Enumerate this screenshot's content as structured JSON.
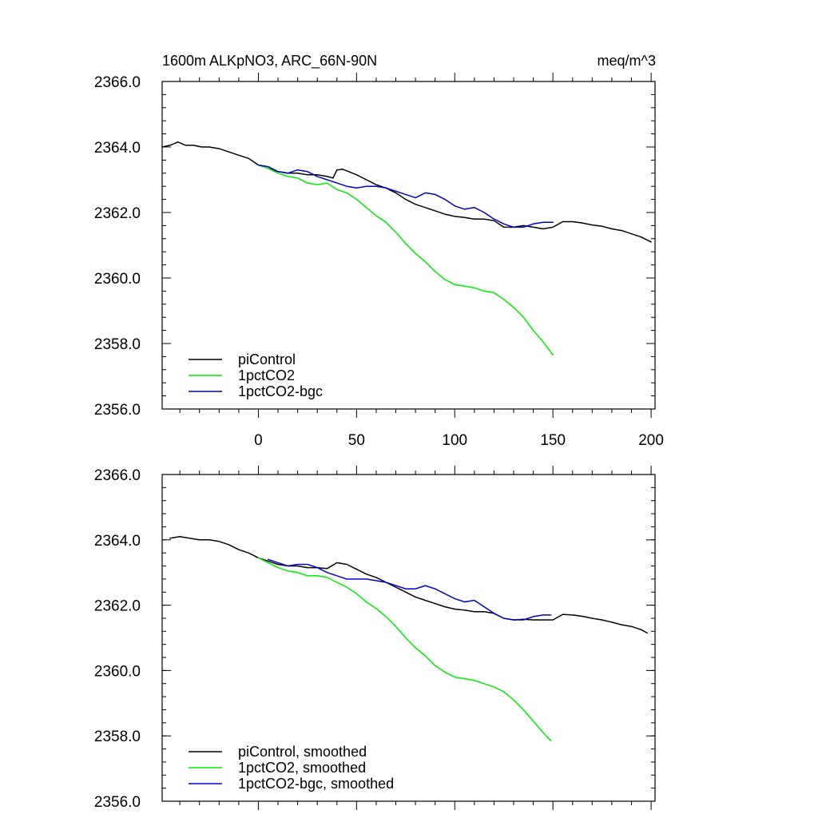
{
  "figure": {
    "title_left": "1600m ALKpNO3, ARC_66N-90N",
    "title_right": "meq/m^3"
  },
  "colors": {
    "piControl": "#000000",
    "1pctCO2": "#00ee00",
    "1pctCO2-bgc": "#0000cc"
  },
  "chart_data": [
    {
      "type": "line",
      "title": "1600m ALKpNO3, ARC_66N-90N",
      "units": "meq/m^3",
      "xlim": [
        -49,
        202
      ],
      "ylim": [
        2356.0,
        2366.0
      ],
      "x_ticks": [
        0,
        50,
        100,
        150,
        200
      ],
      "x_tick_labels": [
        "0",
        "50",
        "100",
        "150",
        "200"
      ],
      "y_ticks": [
        2356.0,
        2358.0,
        2360.0,
        2362.0,
        2364.0,
        2366.0
      ],
      "y_tick_labels": [
        "2356.0",
        "2358.0",
        "2360.0",
        "2362.0",
        "2364.0",
        "2366.0"
      ],
      "legend_position": "bottom-left",
      "series": [
        {
          "name": "piControl",
          "color": "#000000",
          "x": [
            -49,
            -45,
            -41,
            -37,
            -33,
            -29,
            -25,
            -20,
            -15,
            -10,
            -5,
            0,
            5,
            10,
            15,
            20,
            25,
            30,
            35,
            38,
            40,
            43,
            46,
            50,
            55,
            60,
            65,
            70,
            75,
            80,
            85,
            90,
            95,
            100,
            105,
            110,
            115,
            120,
            125,
            130,
            135,
            140,
            145,
            150,
            155,
            160,
            165,
            170,
            175,
            180,
            185,
            190,
            195,
            200
          ],
          "y": [
            2364.0,
            2364.05,
            2364.15,
            2364.05,
            2364.05,
            2364.0,
            2364.0,
            2363.95,
            2363.85,
            2363.75,
            2363.65,
            2363.45,
            2363.35,
            2363.25,
            2363.2,
            2363.2,
            2363.15,
            2363.15,
            2363.1,
            2363.05,
            2363.3,
            2363.32,
            2363.25,
            2363.15,
            2363.0,
            2362.85,
            2362.75,
            2362.6,
            2362.4,
            2362.25,
            2362.15,
            2362.05,
            2361.95,
            2361.88,
            2361.85,
            2361.8,
            2361.8,
            2361.75,
            2361.55,
            2361.55,
            2361.6,
            2361.55,
            2361.5,
            2361.55,
            2361.72,
            2361.72,
            2361.68,
            2361.62,
            2361.58,
            2361.5,
            2361.45,
            2361.35,
            2361.25,
            2361.1
          ]
        },
        {
          "name": "1pctCO2",
          "color": "#00ee00",
          "x": [
            0,
            5,
            10,
            15,
            20,
            25,
            30,
            35,
            40,
            45,
            50,
            55,
            60,
            65,
            70,
            75,
            80,
            85,
            90,
            95,
            100,
            105,
            110,
            115,
            120,
            125,
            130,
            135,
            140,
            145,
            150
          ],
          "y": [
            2363.45,
            2363.35,
            2363.2,
            2363.1,
            2363.05,
            2362.9,
            2362.85,
            2362.9,
            2362.7,
            2362.6,
            2362.4,
            2362.15,
            2361.9,
            2361.7,
            2361.4,
            2361.05,
            2360.75,
            2360.5,
            2360.2,
            2359.95,
            2359.8,
            2359.75,
            2359.7,
            2359.6,
            2359.55,
            2359.35,
            2359.1,
            2358.8,
            2358.4,
            2358.05,
            2357.65
          ]
        },
        {
          "name": "1pctCO2-bgc",
          "color": "#0000cc",
          "x": [
            0,
            5,
            10,
            15,
            20,
            25,
            30,
            35,
            40,
            45,
            50,
            55,
            60,
            65,
            70,
            75,
            80,
            85,
            90,
            95,
            100,
            105,
            110,
            115,
            120,
            125,
            130,
            135,
            140,
            145,
            150
          ],
          "y": [
            2363.45,
            2363.4,
            2363.25,
            2363.2,
            2363.3,
            2363.25,
            2363.1,
            2363.0,
            2362.9,
            2362.8,
            2362.75,
            2362.8,
            2362.8,
            2362.75,
            2362.65,
            2362.55,
            2362.45,
            2362.6,
            2362.55,
            2362.4,
            2362.2,
            2362.1,
            2362.15,
            2362.0,
            2361.8,
            2361.65,
            2361.55,
            2361.55,
            2361.65,
            2361.7,
            2361.7
          ]
        }
      ]
    },
    {
      "type": "line",
      "title": "",
      "xlim": [
        -49,
        202
      ],
      "ylim": [
        2356.0,
        2366.0
      ],
      "x_ticks": [
        0,
        50,
        100,
        150,
        200
      ],
      "x_tick_labels": [],
      "y_ticks": [
        2356.0,
        2358.0,
        2360.0,
        2362.0,
        2364.0,
        2366.0
      ],
      "y_tick_labels": [
        "2356.0",
        "2358.0",
        "2360.0",
        "2362.0",
        "2364.0",
        "2366.0"
      ],
      "legend_position": "bottom-left",
      "series": [
        {
          "name": "piControl, smoothed",
          "color": "#000000",
          "x": [
            -45,
            -40,
            -35,
            -30,
            -25,
            -20,
            -15,
            -10,
            -5,
            0,
            5,
            10,
            15,
            20,
            25,
            30,
            35,
            40,
            45,
            50,
            55,
            60,
            65,
            70,
            75,
            80,
            85,
            90,
            95,
            100,
            105,
            110,
            115,
            120,
            125,
            130,
            135,
            140,
            145,
            150,
            155,
            160,
            165,
            170,
            175,
            180,
            185,
            190,
            195,
            198
          ],
          "y": [
            2364.05,
            2364.1,
            2364.05,
            2364.0,
            2364.0,
            2363.95,
            2363.85,
            2363.7,
            2363.6,
            2363.45,
            2363.35,
            2363.25,
            2363.2,
            2363.2,
            2363.15,
            2363.15,
            2363.12,
            2363.3,
            2363.25,
            2363.1,
            2362.95,
            2362.85,
            2362.7,
            2362.55,
            2362.4,
            2362.25,
            2362.15,
            2362.05,
            2361.95,
            2361.88,
            2361.85,
            2361.8,
            2361.8,
            2361.75,
            2361.6,
            2361.55,
            2361.57,
            2361.55,
            2361.55,
            2361.55,
            2361.72,
            2361.7,
            2361.66,
            2361.6,
            2361.55,
            2361.48,
            2361.4,
            2361.35,
            2361.25,
            2361.15
          ]
        },
        {
          "name": "1pctCO2, smoothed",
          "color": "#00ee00",
          "x": [
            0,
            5,
            10,
            15,
            20,
            25,
            30,
            35,
            40,
            45,
            50,
            55,
            60,
            65,
            70,
            75,
            80,
            85,
            90,
            95,
            100,
            105,
            110,
            115,
            120,
            125,
            130,
            135,
            140,
            145,
            149
          ],
          "y": [
            2363.45,
            2363.3,
            2363.15,
            2363.05,
            2363.0,
            2362.9,
            2362.9,
            2362.85,
            2362.7,
            2362.55,
            2362.35,
            2362.1,
            2361.9,
            2361.65,
            2361.35,
            2361.0,
            2360.7,
            2360.45,
            2360.15,
            2359.95,
            2359.8,
            2359.75,
            2359.7,
            2359.6,
            2359.5,
            2359.35,
            2359.1,
            2358.8,
            2358.45,
            2358.1,
            2357.85
          ]
        },
        {
          "name": "1pctCO2-bgc, smoothed",
          "color": "#0000cc",
          "x": [
            5,
            10,
            15,
            20,
            25,
            30,
            35,
            40,
            45,
            50,
            55,
            60,
            65,
            70,
            75,
            80,
            85,
            90,
            95,
            100,
            105,
            110,
            115,
            120,
            125,
            130,
            135,
            140,
            145,
            149
          ],
          "y": [
            2363.4,
            2363.3,
            2363.2,
            2363.25,
            2363.25,
            2363.15,
            2363.0,
            2362.9,
            2362.8,
            2362.8,
            2362.8,
            2362.75,
            2362.7,
            2362.6,
            2362.5,
            2362.5,
            2362.6,
            2362.5,
            2362.35,
            2362.2,
            2362.1,
            2362.15,
            2361.95,
            2361.75,
            2361.6,
            2361.55,
            2361.55,
            2361.65,
            2361.7,
            2361.7
          ]
        }
      ]
    }
  ]
}
